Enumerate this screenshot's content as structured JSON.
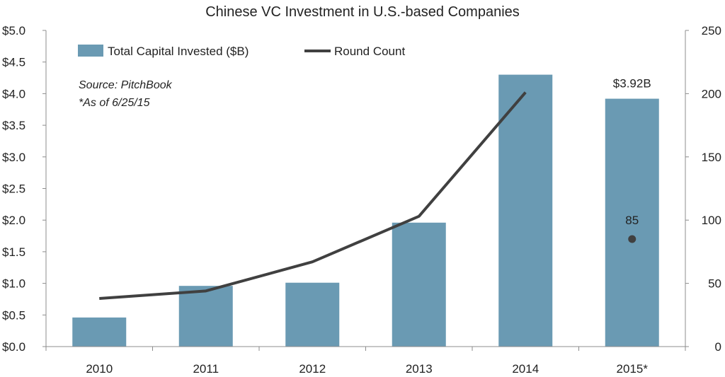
{
  "chart_data": {
    "type": "bar",
    "title": "Chinese VC Investment in U.S.-based Companies",
    "categories": [
      "2010",
      "2011",
      "2012",
      "2013",
      "2014",
      "2015*"
    ],
    "series": [
      {
        "name": "Total Capital Invested ($B)",
        "type": "bar",
        "axis": "left",
        "color": "#6a9ab3",
        "values": [
          0.46,
          0.96,
          1.01,
          1.96,
          4.3,
          3.92
        ]
      },
      {
        "name": "Round Count",
        "type": "line",
        "axis": "right",
        "color": "#404040",
        "values": [
          38,
          44,
          67,
          103,
          201,
          85
        ],
        "line_points": 5,
        "last_point_marker": true
      }
    ],
    "left_axis": {
      "ylim": [
        0,
        5
      ],
      "ticks": [
        "$0.0",
        "$0.5",
        "$1.0",
        "$1.5",
        "$2.0",
        "$2.5",
        "$3.0",
        "$3.5",
        "$4.0",
        "$4.5",
        "$5.0"
      ]
    },
    "right_axis": {
      "ylim": [
        0,
        250
      ],
      "ticks": [
        "0",
        "50",
        "100",
        "150",
        "200",
        "250"
      ]
    },
    "annotations": {
      "source": "Source: PitchBook",
      "as_of": "*As of 6/25/15",
      "bar_label_last": "$3.92B",
      "point_label_last": "85"
    },
    "legend": {
      "position": "top-left"
    },
    "grid": false
  }
}
